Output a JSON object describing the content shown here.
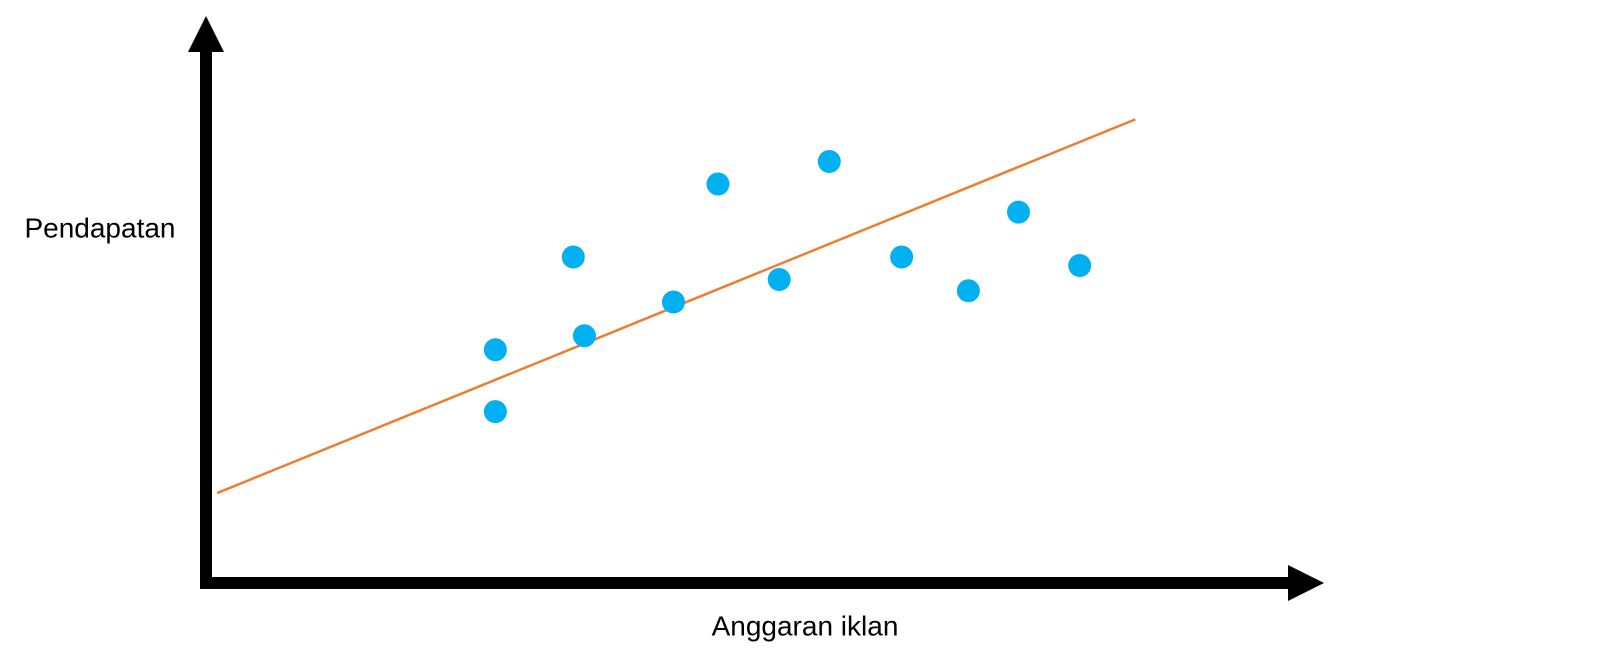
{
  "chart_data": {
    "type": "scatter",
    "x_label": "Anggaran iklan",
    "y_label": "Pendapatan",
    "x": [
      26,
      26,
      33,
      34,
      42,
      46,
      51.5,
      56,
      62.5,
      68.5,
      73,
      78.5
    ],
    "values": [
      41.5,
      30.5,
      58,
      44,
      50,
      71,
      54,
      75,
      58,
      52,
      66,
      56.5
    ],
    "color": "#00b0f0",
    "trend_line": {
      "x": [
        1,
        83.5
      ],
      "y": [
        16,
        82.5
      ],
      "color": "#ed7d31"
    },
    "xlim": [
      0,
      100
    ],
    "ylim": [
      0,
      100
    ],
    "grid": false
  }
}
